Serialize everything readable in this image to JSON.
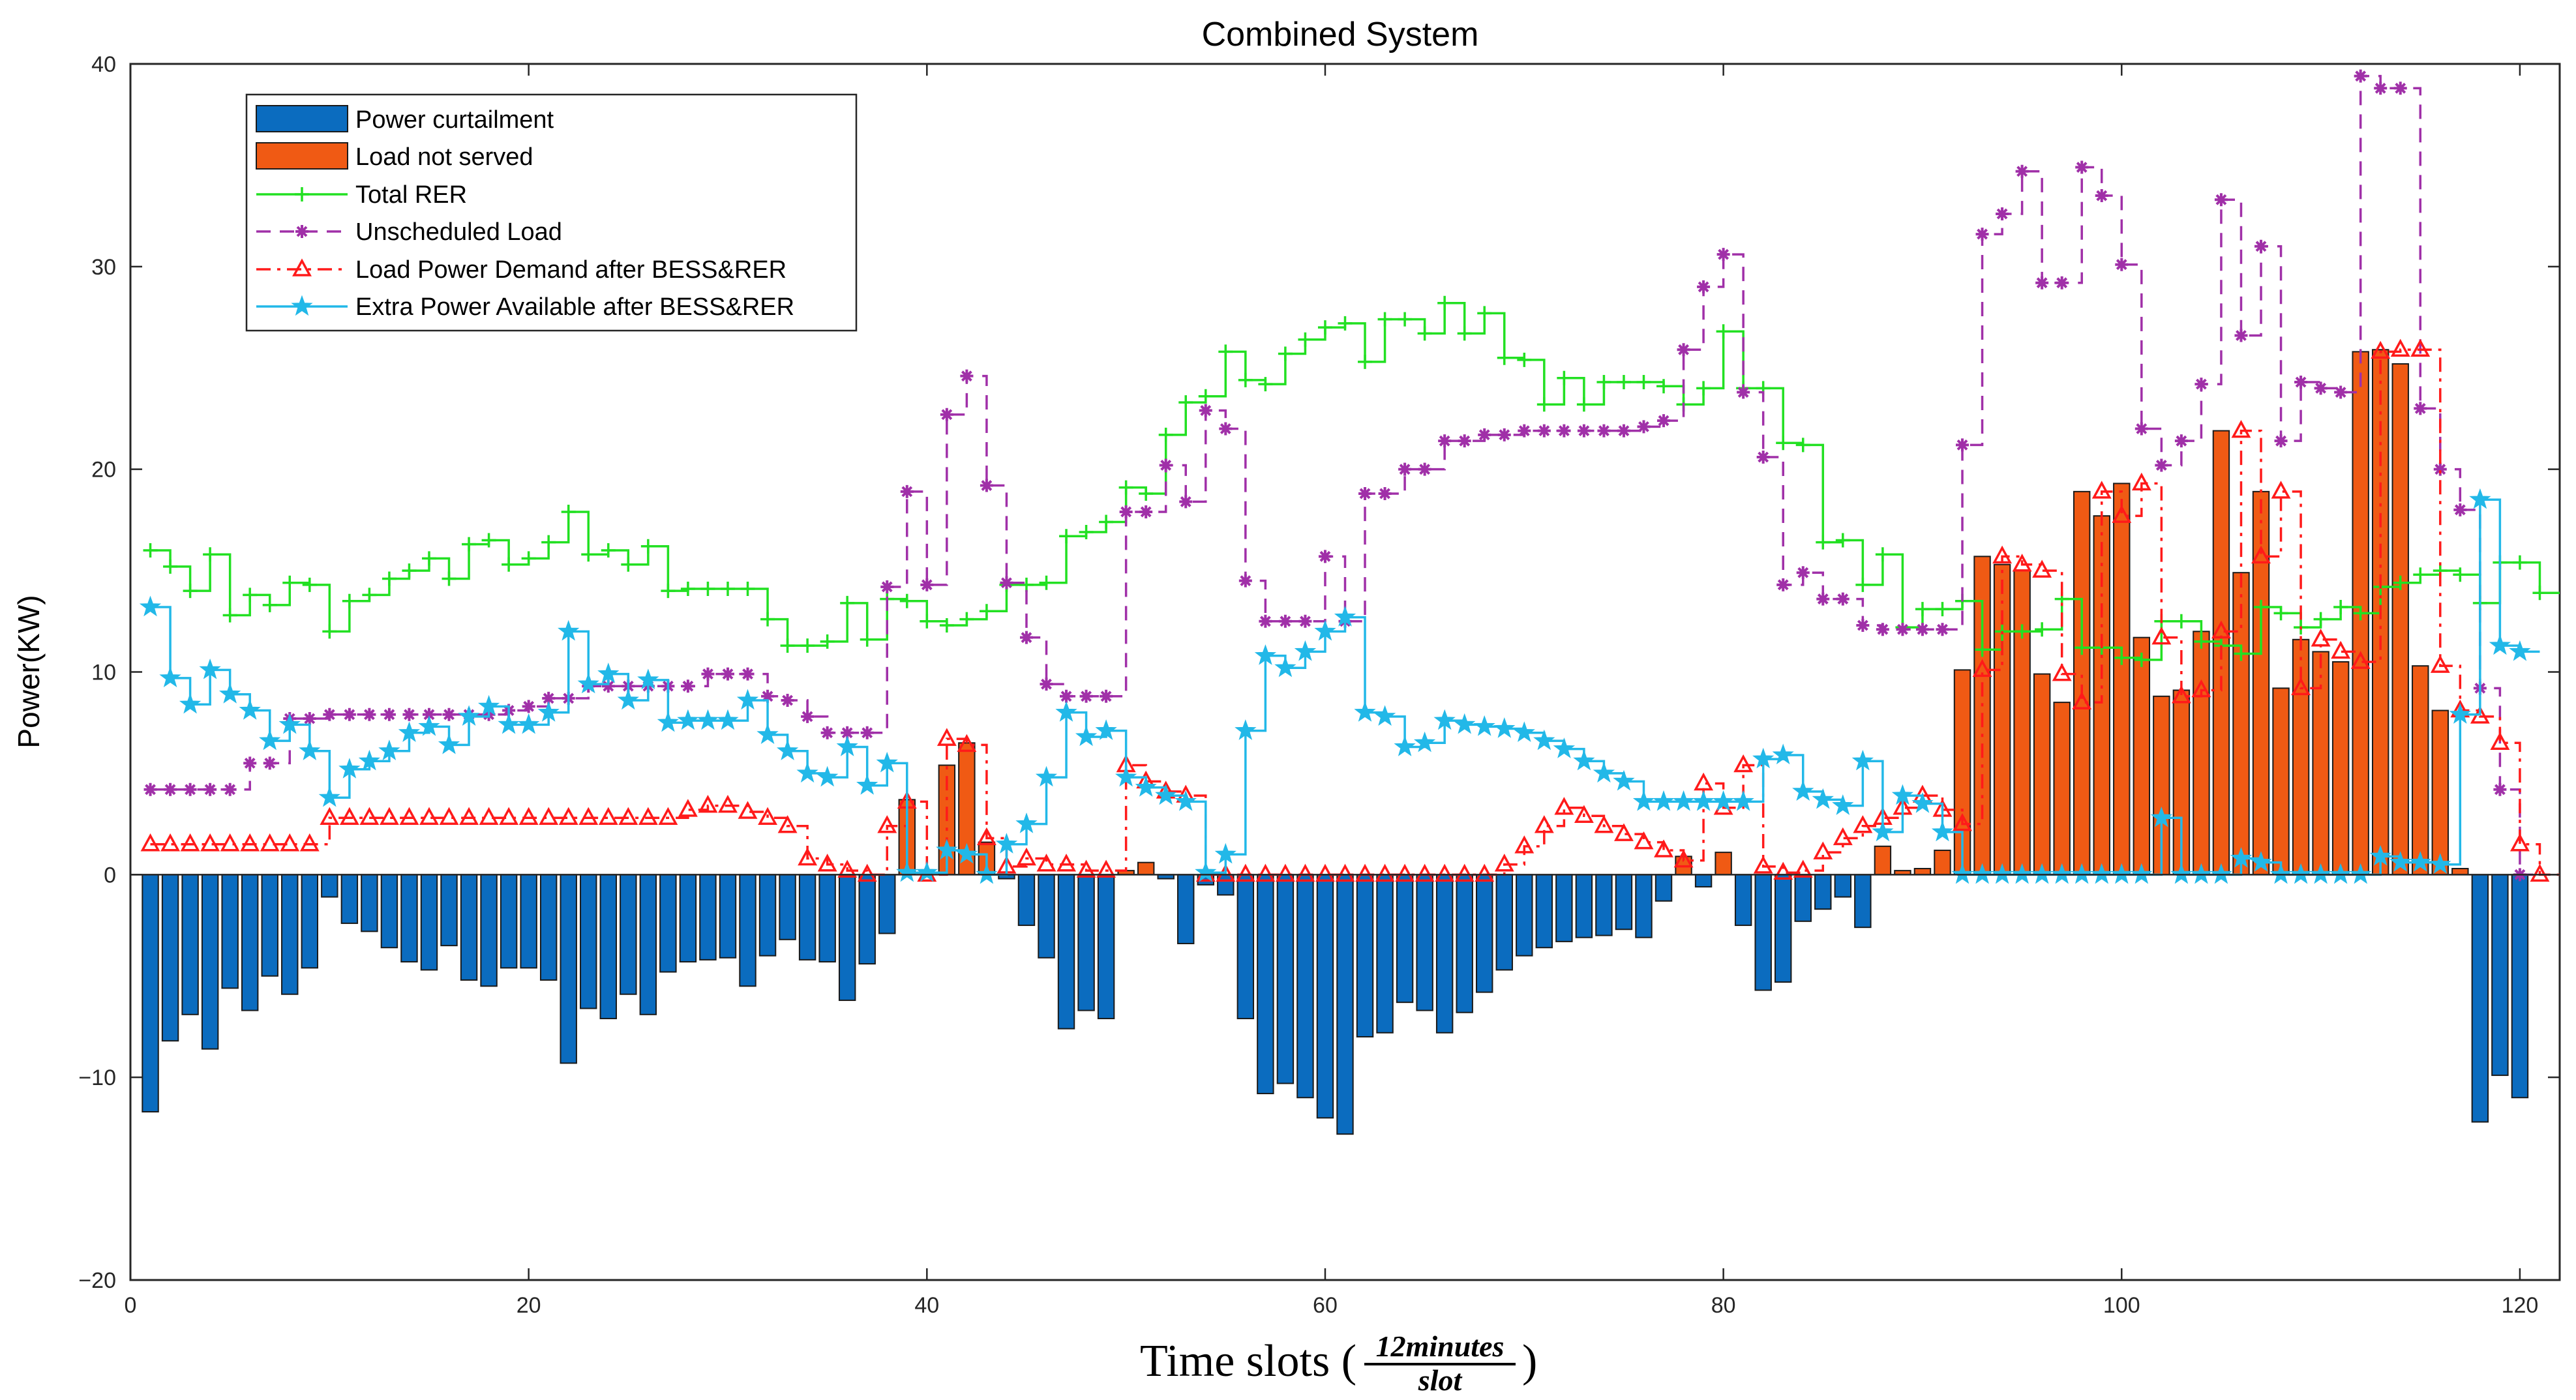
{
  "chart_data": {
    "type": "bar",
    "title": "Combined System",
    "xlabel": {
      "prefix": "Time slots (",
      "num": "12minutes",
      "den": "slot",
      "suffix": ")"
    },
    "ylabel": "Power(KW)",
    "xlim": [
      0,
      122
    ],
    "ylim": [
      -20,
      40
    ],
    "xticks": [
      0,
      20,
      40,
      60,
      80,
      100,
      120
    ],
    "yticks": [
      -20,
      -10,
      0,
      10,
      20,
      30,
      40
    ],
    "ytick_labels": [
      "−20",
      "−10",
      "0",
      "10",
      "20",
      "30",
      "40"
    ],
    "legend": [
      "Power curtailment",
      "Load not served",
      "Total RER",
      "Unscheduled Load",
      "Load Power Demand after BESS&RER",
      "Extra Power Available after BESS&RER"
    ],
    "colors": {
      "curtailment": "#0b6cbf",
      "lns": "#f05a14",
      "rer": "#22e022",
      "unsched": "#a030a8",
      "demand": "#ff1a1a",
      "extra": "#22b8e8"
    },
    "curtailment": [
      -11.7,
      -8.2,
      -6.9,
      -8.6,
      -5.6,
      -6.7,
      -5,
      -5.9,
      -4.6,
      -1.1,
      -2.4,
      -2.8,
      -3.6,
      -4.3,
      -4.7,
      -3.5,
      -5.2,
      -5.5,
      -4.6,
      -4.6,
      -5.2,
      -9.3,
      -6.6,
      -7.1,
      -5.9,
      -6.9,
      -4.8,
      -4.3,
      -4.2,
      -4.1,
      -5.5,
      -4.0,
      -3.2,
      -4.2,
      -4.3,
      -6.2,
      -4.4,
      -2.9,
      0,
      0,
      0,
      0,
      0,
      -0.2,
      -2.5,
      -4.1,
      -7.6,
      -6.7,
      -7.1,
      0,
      0,
      -0.2,
      -3.4,
      -0.5,
      -1.0,
      -7.1,
      -10.8,
      -10.3,
      -11.0,
      -12.0,
      -12.8,
      -8.0,
      -7.8,
      -6.3,
      -6.7,
      -7.8,
      -6.8,
      -5.8,
      -4.7,
      -4.0,
      -3.6,
      -3.3,
      -3.1,
      -3.0,
      -2.7,
      -3.1,
      -1.3,
      0,
      -0.6,
      0,
      -2.5,
      -5.7,
      -5.3,
      -2.3,
      -1.7,
      -1.1,
      -2.6,
      0,
      0,
      0,
      0,
      0,
      0,
      0,
      0,
      0,
      0,
      0,
      0,
      0,
      0,
      0,
      0,
      0,
      0,
      0,
      0,
      0,
      0,
      0,
      0,
      0,
      0,
      0,
      0,
      0,
      0,
      -12.2,
      -9.9,
      -11.0
    ],
    "load_not_served": [
      0,
      0,
      0,
      0,
      0,
      0,
      0,
      0,
      0,
      0,
      0,
      0,
      0,
      0,
      0,
      0,
      0,
      0,
      0,
      0,
      0,
      0,
      0,
      0,
      0,
      0,
      0,
      0,
      0,
      0,
      0,
      0,
      0,
      0,
      0,
      0,
      0,
      0,
      3.7,
      0,
      5.4,
      6.5,
      1.6,
      0,
      0,
      0,
      0,
      0,
      0,
      0.2,
      0.6,
      0,
      0,
      0,
      0,
      0,
      0,
      0,
      0,
      0,
      0,
      0,
      0,
      0,
      0,
      0,
      0,
      0,
      0,
      0,
      0,
      0,
      0,
      0,
      0,
      0,
      0,
      0.9,
      0,
      1.1,
      0,
      0,
      0,
      0,
      0,
      0,
      0,
      1.4,
      0.2,
      0.3,
      1.2,
      10.1,
      15.7,
      15.3,
      15,
      9.9,
      8.5,
      18.9,
      17.7,
      19.3,
      11.7,
      8.8,
      9.1,
      12,
      21.9,
      14.9,
      18.9,
      9.2,
      11.6,
      11,
      10.5,
      25.8,
      25.9,
      25.2,
      10.3,
      8.1,
      0.3,
      0,
      0,
      0
    ],
    "rer": [
      16,
      15.2,
      14,
      15.8,
      12.8,
      13.8,
      13.3,
      14.4,
      14.3,
      12,
      13.5,
      13.8,
      14.6,
      15,
      15.6,
      14.6,
      16.3,
      16.5,
      15.3,
      15.6,
      16.4,
      17.9,
      15.8,
      16,
      15.3,
      16.2,
      14,
      14.1,
      14.1,
      14.1,
      14.1,
      12.6,
      11.3,
      11.3,
      11.5,
      13.4,
      11.6,
      13.6,
      13.5,
      12.5,
      12.3,
      12.6,
      13,
      14.3,
      14.3,
      14.4,
      16.7,
      16.9,
      17.4,
      19.1,
      18.8,
      21.7,
      23.3,
      23.6,
      25.8,
      24.4,
      24.2,
      25.7,
      26.4,
      27,
      27.2,
      25.3,
      27.4,
      27.4,
      26.7,
      28.2,
      26.7,
      27.7,
      25.5,
      25.4,
      23.2,
      24.5,
      23.2,
      24.3,
      24.3,
      24.3,
      24.1,
      23.2,
      24,
      26.8,
      24,
      24,
      21.3,
      21.2,
      16.4,
      16.5,
      14.3,
      15.8,
      12.2,
      13.1,
      13.1,
      13.5,
      11.1,
      12,
      12,
      12.1,
      13.6,
      11.2,
      11.2,
      10.7,
      10.6,
      12.5,
      12.5,
      11.5,
      11.3,
      10.9,
      13.2,
      12.9,
      12.2,
      12.6,
      13.2,
      12.9,
      14.2,
      14.4,
      14.8,
      15,
      14.8,
      13.4,
      15.4,
      15.4,
      13.9
    ],
    "unscheduled": [
      4.2,
      4.2,
      4.2,
      4.2,
      4.2,
      5.5,
      5.5,
      7.7,
      7.7,
      7.9,
      7.9,
      7.9,
      7.9,
      7.9,
      7.9,
      7.9,
      7.9,
      7.9,
      8.1,
      8.3,
      8.7,
      8.7,
      9.3,
      9.3,
      9.3,
      9.3,
      9.3,
      9.3,
      9.9,
      9.9,
      9.9,
      8.8,
      8.6,
      7.8,
      7.0,
      7.0,
      7.0,
      14.2,
      18.9,
      14.3,
      22.7,
      24.6,
      19.2,
      14.4,
      11.7,
      9.4,
      8.8,
      8.8,
      8.8,
      17.9,
      17.9,
      20.2,
      18.4,
      22.9,
      22,
      14.5,
      12.5,
      12.5,
      12.5,
      15.7,
      12.5,
      18.8,
      18.8,
      20.0,
      20.0,
      21.4,
      21.4,
      21.7,
      21.7,
      21.9,
      21.9,
      21.9,
      21.9,
      21.9,
      21.9,
      22.1,
      22.4,
      25.9,
      29,
      30.6,
      23.8,
      20.6,
      14.3,
      14.9,
      13.6,
      13.6,
      12.3,
      12.1,
      12.1,
      12.1,
      12.1,
      21.2,
      31.6,
      32.6,
      34.7,
      29.2,
      29.2,
      34.9,
      33.5,
      30.1,
      22,
      20.2,
      21.4,
      24.2,
      33.3,
      26.6,
      31.0,
      21.4,
      24.3,
      24.0,
      23.8,
      39.4,
      38.8,
      38.8,
      23.0,
      20.0,
      18.0,
      9.2,
      4.2,
      0
    ],
    "demand": [
      1.5,
      1.5,
      1.5,
      1.5,
      1.5,
      1.5,
      1.5,
      1.5,
      1.5,
      2.8,
      2.8,
      2.8,
      2.8,
      2.8,
      2.8,
      2.8,
      2.8,
      2.8,
      2.8,
      2.8,
      2.8,
      2.8,
      2.8,
      2.8,
      2.8,
      2.8,
      2.8,
      3.2,
      3.4,
      3.4,
      3.1,
      2.8,
      2.4,
      0.8,
      0.5,
      0.2,
      0,
      2.4,
      3.6,
      0,
      6.7,
      6.4,
      1.8,
      0.4,
      0.8,
      0.5,
      0.5,
      0.2,
      0.2,
      5.4,
      4.6,
      4.1,
      3.9,
      0,
      0,
      0,
      0,
      0,
      0,
      0,
      0,
      0,
      0,
      0,
      0,
      0,
      0,
      0,
      0.5,
      1.4,
      2.4,
      3.3,
      2.9,
      2.4,
      2.0,
      1.6,
      1.2,
      0.7,
      4.5,
      3.3,
      5.4,
      0.4,
      0.1,
      0.2,
      1.1,
      1.8,
      2.4,
      2.8,
      3.3,
      3.9,
      3.2,
      2.5,
      10.1,
      15.7,
      15.3,
      15.0,
      9.9,
      8.5,
      18.9,
      17.7,
      19.3,
      11.7,
      8.8,
      9.1,
      12.0,
      21.9,
      15.7,
      18.9,
      9.2,
      11.6,
      11.0,
      10.5,
      25.8,
      25.9,
      25.9,
      10.3,
      8.1,
      7.8,
      6.5,
      1.5,
      0
    ],
    "extra": [
      13.2,
      9.7,
      8.4,
      10.1,
      8.9,
      8.1,
      6.6,
      7.4,
      6.1,
      3.8,
      5.2,
      5.6,
      6.1,
      7.0,
      7.3,
      6.4,
      7.8,
      8.3,
      7.4,
      7.4,
      8.0,
      12.0,
      9.4,
      9.9,
      8.6,
      9.6,
      7.5,
      7.6,
      7.6,
      7.6,
      8.6,
      6.9,
      6.1,
      5.0,
      4.8,
      6.3,
      4.4,
      5.5,
      0.1,
      0.1,
      1.2,
      1.0,
      0,
      1.5,
      2.5,
      4.8,
      8.0,
      6.8,
      7.1,
      4.8,
      4.3,
      3.9,
      3.6,
      0.1,
      1.0,
      7.1,
      10.8,
      10.2,
      11.0,
      12.0,
      12.7,
      8.0,
      7.8,
      6.3,
      6.5,
      7.6,
      7.4,
      7.3,
      7.2,
      7.0,
      6.6,
      6.2,
      5.6,
      5.0,
      4.6,
      3.6,
      3.6,
      3.6,
      3.6,
      3.6,
      3.6,
      5.7,
      5.9,
      4.1,
      3.7,
      3.4,
      5.6,
      2.1,
      3.9,
      3.5,
      2.1,
      0,
      0,
      0,
      0,
      0,
      0,
      0,
      0,
      0,
      0,
      2.8,
      0,
      0,
      0,
      0.8,
      0.6,
      0,
      0,
      0,
      0,
      0,
      0.9,
      0.6,
      0.6,
      0.5,
      7.9,
      18.5,
      11.3,
      11
    ]
  }
}
